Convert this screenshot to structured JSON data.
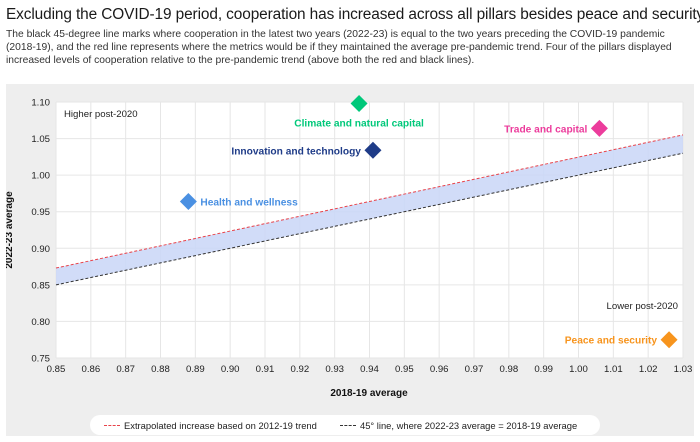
{
  "header": {
    "title": "Excluding the COVID-19 period, cooperation has increased across all pillars besides peace and security",
    "subtitle": "The black 45-degree line marks where cooperation in the latest two years (2022-23) is equal to the two years preceding the COVID-19 pandemic (2018-19), and the red line represents where the metrics would be if they maintained the average pre-pandemic trend. Four of the pillars displayed increased levels of cooperation relative to the pre-pandemic trend (above both the red and black lines)."
  },
  "chart_data": {
    "type": "scatter",
    "xlabel": "2018-19 average",
    "ylabel": "2022-23 average",
    "xlim": [
      0.85,
      1.03
    ],
    "ylim": [
      0.75,
      1.1
    ],
    "xticks": [
      "0.85",
      "0.86",
      "0.87",
      "0.88",
      "0.89",
      "0.90",
      "0.91",
      "0.92",
      "0.93",
      "0.94",
      "0.95",
      "0.96",
      "0.97",
      "0.98",
      "0.99",
      "1.00",
      "1.01",
      "1.02",
      "1.03"
    ],
    "yticks": [
      "0.75",
      "0.80",
      "0.85",
      "0.90",
      "0.95",
      "1.00",
      "1.05",
      "1.10"
    ],
    "grid": true,
    "region_labels": [
      {
        "text": "Higher post-2020",
        "corner": "top-left"
      },
      {
        "text": "Lower post-2020",
        "corner": "bottom-right"
      }
    ],
    "points": [
      {
        "name": "Climate and natural capital",
        "x": 0.937,
        "y": 1.098,
        "color": "#00c87a",
        "label_side": "below"
      },
      {
        "name": "Trade and capital",
        "x": 1.006,
        "y": 1.064,
        "color": "#ec3c9c",
        "label_side": "left"
      },
      {
        "name": "Innovation and technology",
        "x": 0.941,
        "y": 1.034,
        "color": "#1f3c88",
        "label_side": "left"
      },
      {
        "name": "Health and wellness",
        "x": 0.888,
        "y": 0.964,
        "color": "#4a90e2",
        "label_side": "right"
      },
      {
        "name": "Peace and security",
        "x": 1.026,
        "y": 0.775,
        "color": "#f7941d",
        "label_side": "left"
      }
    ],
    "lines": [
      {
        "name": "Extrapolated increase based on 2012-19 trend",
        "color": "#e8434a",
        "style": "dashed",
        "y_at_xmin": 0.873,
        "y_at_xmax": 1.055
      },
      {
        "name": "45° line, where 2022-23 average = 2018-19 average",
        "color": "#333333",
        "style": "dashed",
        "y_at_xmin": 0.85,
        "y_at_xmax": 1.03
      }
    ],
    "band_color": "#c9d6f7",
    "legend_position": "bottom"
  }
}
